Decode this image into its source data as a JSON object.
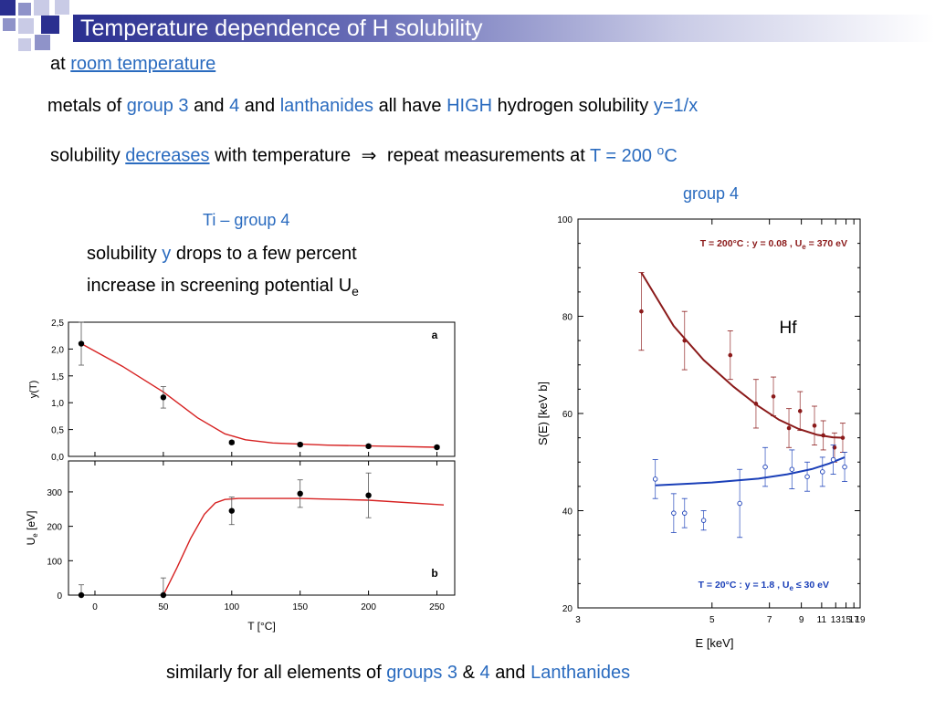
{
  "slide": {
    "title": "Temperature dependence of H solubility",
    "line1": {
      "prefix": "at",
      "link": "room temperature"
    },
    "line2": {
      "a": "metals of",
      "b": "group 3",
      "c": "and",
      "d": "4",
      "e": "and",
      "f": "lanthanides",
      "g": "all have",
      "h": "HIGH",
      "i": "hydrogen solubility",
      "j": "y=1/x"
    },
    "line3": {
      "a": "solubility",
      "b": "decreases",
      "c": "with temperature",
      "arrow": "⇒",
      "d": "repeat measurements at",
      "e": "T = 200",
      "f": "o",
      "g": "C"
    },
    "ti_heading": "Ti – group 4",
    "ti_line1": {
      "a": "solubility",
      "b": "y",
      "c": "drops to a few percent"
    },
    "ti_line2": {
      "a": "increase in screening potential U",
      "sub": "e"
    },
    "hf_heading": "group 4",
    "footer": {
      "a": "similarly for all elements of",
      "b": "groups 3",
      "c": "&",
      "d": "4",
      "e": "and",
      "f": "Lanthanides"
    }
  },
  "chart_data": [
    {
      "type": "scatter",
      "panel_label": "a",
      "ylabel": "y(T)",
      "xlim": [
        -10,
        255
      ],
      "ylim": [
        0,
        2.5
      ],
      "yticks": [
        "0,0",
        "0,5",
        "1,0",
        "1,5",
        "2,0",
        "2,5"
      ],
      "points": [
        {
          "x": -10,
          "y": 2.1,
          "err": 0.4
        },
        {
          "x": 50,
          "y": 1.1,
          "err": 0.2
        },
        {
          "x": 100,
          "y": 0.26,
          "err": 0.03
        },
        {
          "x": 150,
          "y": 0.22,
          "err": 0.03
        },
        {
          "x": 200,
          "y": 0.19,
          "err": 0.03
        },
        {
          "x": 250,
          "y": 0.17,
          "err": 0.03
        }
      ],
      "fit": [
        [
          -10,
          2.1
        ],
        [
          20,
          1.68
        ],
        [
          50,
          1.2
        ],
        [
          75,
          0.72
        ],
        [
          95,
          0.42
        ],
        [
          110,
          0.31
        ],
        [
          130,
          0.25
        ],
        [
          170,
          0.21
        ],
        [
          210,
          0.19
        ],
        [
          250,
          0.17
        ]
      ],
      "fit_color": "#d62020"
    },
    {
      "type": "scatter",
      "panel_label": "b",
      "xlabel": "T [°C]",
      "ylabel_main": "U",
      "ylabel_sub": "e",
      "ylabel_unit": " [eV]",
      "xlim": [
        -10,
        255
      ],
      "ylim": [
        0,
        390
      ],
      "xticks": [
        "0",
        "50",
        "100",
        "150",
        "200",
        "250"
      ],
      "yticks": [
        "0",
        "100",
        "200",
        "300"
      ],
      "points": [
        {
          "x": -10,
          "y": 0,
          "err": 30
        },
        {
          "x": 50,
          "y": 0,
          "err": 50
        },
        {
          "x": 100,
          "y": 245,
          "err": 40
        },
        {
          "x": 150,
          "y": 295,
          "err": 40
        },
        {
          "x": 200,
          "y": 290,
          "err": 65
        }
      ],
      "fit": [
        [
          50,
          0
        ],
        [
          60,
          80
        ],
        [
          70,
          165
        ],
        [
          80,
          235
        ],
        [
          88,
          268
        ],
        [
          95,
          278
        ],
        [
          105,
          281
        ],
        [
          150,
          281
        ],
        [
          200,
          276
        ],
        [
          255,
          262
        ]
      ],
      "fit_color": "#d62020"
    },
    {
      "type": "scatter",
      "element": "Hf",
      "xlabel": "E [keV]",
      "ylabel": "S(E) [keV b]",
      "xscale": "reciprocal",
      "xlim": [
        3,
        19
      ],
      "ylim": [
        20,
        100
      ],
      "xticks": [
        "3",
        "5",
        "7",
        "9",
        "11",
        "13",
        "15",
        "17",
        "19"
      ],
      "yticks": [
        "20",
        "40",
        "60",
        "80",
        "100"
      ],
      "series": [
        {
          "label": {
            "a": "T = 200°C :  y = 0.08 , U",
            "sub": "e",
            "b": " = 370 eV"
          },
          "color": "#8b1a1a",
          "marker": "filled",
          "points": [
            {
              "x": 3.7,
              "y": 81,
              "err": 8
            },
            {
              "x": 4.4,
              "y": 75,
              "err": 6
            },
            {
              "x": 5.5,
              "y": 72,
              "err": 5
            },
            {
              "x": 6.4,
              "y": 62,
              "err": 5
            },
            {
              "x": 7.2,
              "y": 63.5,
              "err": 4
            },
            {
              "x": 8.1,
              "y": 57,
              "err": 4
            },
            {
              "x": 8.9,
              "y": 60.5,
              "err": 4
            },
            {
              "x": 10.2,
              "y": 57.5,
              "err": 4
            },
            {
              "x": 11.2,
              "y": 55.5,
              "err": 3
            },
            {
              "x": 12.8,
              "y": 53,
              "err": 3
            },
            {
              "x": 14.3,
              "y": 55,
              "err": 3
            }
          ],
          "fit": [
            [
              3.7,
              89
            ],
            [
              4.2,
              78
            ],
            [
              4.8,
              71
            ],
            [
              5.6,
              65.5
            ],
            [
              6.5,
              61.5
            ],
            [
              7.5,
              58.7
            ],
            [
              8.8,
              56.8
            ],
            [
              10.5,
              55.6
            ],
            [
              12.5,
              55.1
            ],
            [
              14.6,
              55
            ]
          ]
        },
        {
          "label": {
            "a": "T = 20°C : y = 1.8 , U",
            "sub": "e",
            "b": " ≤ 30 eV"
          },
          "color": "#1a3fb8",
          "marker": "open",
          "points": [
            {
              "x": 3.9,
              "y": 46.5,
              "err": 4
            },
            {
              "x": 4.2,
              "y": 39.5,
              "err": 4
            },
            {
              "x": 4.4,
              "y": 39.5,
              "err": 3
            },
            {
              "x": 4.8,
              "y": 38,
              "err": 2
            },
            {
              "x": 5.8,
              "y": 41.5,
              "err": 7
            },
            {
              "x": 6.8,
              "y": 49,
              "err": 4
            },
            {
              "x": 8.3,
              "y": 48.5,
              "err": 4
            },
            {
              "x": 9.5,
              "y": 47,
              "err": 3
            },
            {
              "x": 11.1,
              "y": 48,
              "err": 3
            },
            {
              "x": 12.6,
              "y": 50.5,
              "err": 3
            },
            {
              "x": 14.7,
              "y": 49,
              "err": 3
            }
          ],
          "fit": [
            [
              3.9,
              45.2
            ],
            [
              5,
              45.8
            ],
            [
              6.5,
              46.6
            ],
            [
              8,
              47.5
            ],
            [
              10,
              48.6
            ],
            [
              12,
              49.7
            ],
            [
              14.7,
              51
            ]
          ]
        }
      ]
    }
  ]
}
